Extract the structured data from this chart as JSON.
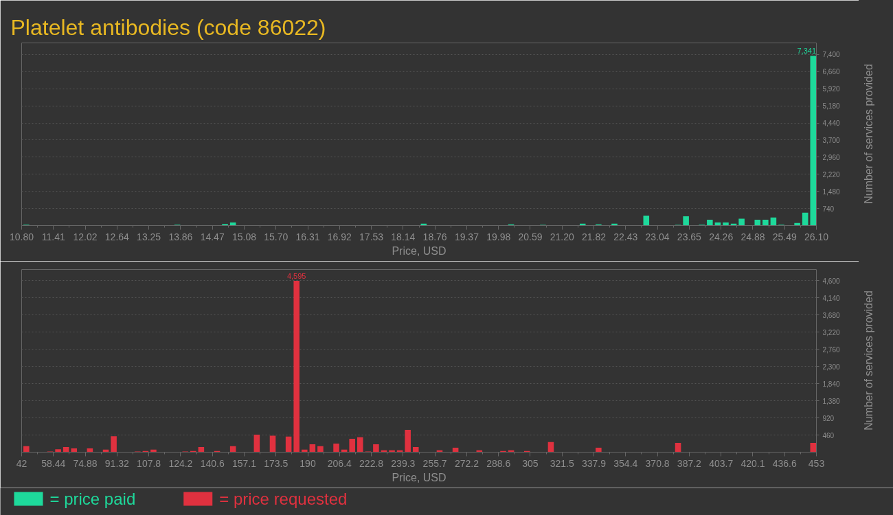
{
  "chart_data": [
    {
      "type": "histogram",
      "title": "Platelet antibodies (code 86022)",
      "xlabel": "Price, USD",
      "ylabel": "Number of services provided",
      "grid": "y",
      "legend": "bottom left",
      "bins": [
        10.8,
        10.953,
        11.106,
        11.259,
        11.412,
        11.565,
        11.718,
        11.871,
        12.024,
        12.177,
        12.33,
        12.483,
        12.636,
        12.789,
        12.942,
        13.095,
        13.248,
        13.401,
        13.554,
        13.707,
        13.86,
        14.013,
        14.166,
        14.319,
        14.472,
        14.625,
        14.778,
        14.931,
        15.084,
        15.237,
        15.39,
        15.543,
        15.696,
        15.849,
        16.002,
        16.155,
        16.308,
        16.461,
        16.614,
        16.767,
        16.92,
        17.073,
        17.226,
        17.379,
        17.532,
        17.685,
        17.838,
        17.991,
        18.144,
        18.297,
        18.45,
        18.603,
        18.756,
        18.909,
        19.062,
        19.215,
        19.368,
        19.521,
        19.674,
        19.827,
        19.98,
        20.133,
        20.286,
        20.439,
        20.592,
        20.745,
        20.898,
        21.051,
        21.204,
        21.357,
        21.51,
        21.663,
        21.816,
        21.969,
        22.122,
        22.275,
        22.428,
        22.581,
        22.734,
        22.887,
        23.04,
        23.193,
        23.346,
        23.499,
        23.652,
        23.805,
        23.958,
        24.111,
        24.264,
        24.417,
        24.57,
        24.723,
        24.876,
        25.029,
        25.182,
        25.335,
        25.488,
        25.641,
        25.794,
        25.947,
        26.1
      ],
      "series": [
        {
          "name": "= price paid",
          "color": "#1ed99b",
          "values": [
            40,
            0,
            0,
            0,
            0,
            0,
            0,
            0,
            0,
            0,
            0,
            0,
            0,
            0,
            0,
            0,
            0,
            0,
            0,
            40,
            0,
            0,
            0,
            0,
            0,
            70,
            130,
            0,
            0,
            0,
            0,
            0,
            0,
            0,
            0,
            0,
            0,
            0,
            0,
            0,
            0,
            0,
            0,
            0,
            0,
            0,
            0,
            0,
            0,
            0,
            80,
            0,
            0,
            0,
            0,
            0,
            0,
            0,
            0,
            0,
            0,
            50,
            0,
            0,
            0,
            30,
            0,
            0,
            0,
            0,
            80,
            0,
            50,
            0,
            80,
            0,
            0,
            0,
            430,
            0,
            0,
            0,
            30,
            400,
            0,
            40,
            250,
            130,
            130,
            80,
            300,
            0,
            250,
            250,
            350,
            40,
            0,
            110,
            560,
            7341
          ],
          "value_labels": [
            null,
            null,
            null,
            null,
            null,
            null,
            null,
            null,
            null,
            null,
            null,
            null,
            null,
            null,
            null,
            null,
            null,
            null,
            null,
            null,
            null,
            null,
            null,
            null,
            null,
            null,
            null,
            null,
            null,
            null,
            null,
            null,
            null,
            null,
            null,
            null,
            null,
            null,
            null,
            null,
            null,
            null,
            null,
            null,
            null,
            null,
            null,
            null,
            null,
            null,
            null,
            null,
            null,
            null,
            null,
            null,
            null,
            null,
            null,
            null,
            null,
            null,
            null,
            null,
            null,
            null,
            null,
            null,
            null,
            null,
            null,
            null,
            null,
            null,
            null,
            null,
            null,
            null,
            null,
            null,
            null,
            null,
            null,
            null,
            null,
            null,
            null,
            null,
            null,
            null,
            null,
            null,
            null,
            null,
            null,
            null,
            null,
            null,
            null,
            "7,341"
          ]
        }
      ],
      "xlim": [
        10.8,
        26.1
      ],
      "xticks": [
        {
          "value": 10.8,
          "label": "10.80"
        },
        {
          "value": 11.412,
          "label": "11.41"
        },
        {
          "value": 12.024,
          "label": "12.02"
        },
        {
          "value": 12.636,
          "label": "12.64"
        },
        {
          "value": 13.248,
          "label": "13.25"
        },
        13.86,
        {
          "value": 14.472,
          "label": "14.47"
        },
        {
          "value": 15.084,
          "label": "15.08"
        },
        {
          "value": 15.696,
          "label": "15.70"
        },
        {
          "value": 16.308,
          "label": "16.31"
        },
        16.92,
        {
          "value": 17.532,
          "label": "17.53"
        },
        {
          "value": 18.144,
          "label": "18.14"
        },
        {
          "value": 18.756,
          "label": "18.76"
        },
        {
          "value": 19.368,
          "label": "19.37"
        },
        19.98,
        {
          "value": 20.592,
          "label": "20.59"
        },
        {
          "value": 21.204,
          "label": "21.20"
        },
        {
          "value": 21.816,
          "label": "21.82"
        },
        {
          "value": 22.428,
          "label": "22.43"
        },
        23.04,
        {
          "value": 23.652,
          "label": "23.65"
        },
        {
          "value": 24.264,
          "label": "24.26"
        },
        {
          "value": 24.876,
          "label": "24.88"
        },
        {
          "value": 25.488,
          "label": "25.49"
        },
        {
          "value": 26.1,
          "label": "26.10"
        }
      ],
      "ylim": [
        0,
        7900
      ],
      "yticks": [
        740,
        {
          "value": 1480,
          "label": "1,480"
        },
        {
          "value": 2220,
          "label": "2,220"
        },
        {
          "value": 2960,
          "label": "2,960"
        },
        {
          "value": 3700,
          "label": "3,700"
        },
        {
          "value": 4440,
          "label": "4,440"
        },
        {
          "value": 5180,
          "label": "5,180"
        },
        {
          "value": 5920,
          "label": "5,920"
        },
        {
          "value": 6660,
          "label": "6,660"
        },
        {
          "value": 7400,
          "label": "7,400"
        }
      ]
    },
    {
      "type": "histogram",
      "xlabel": "Price, USD",
      "ylabel": "Number of services provided",
      "grid": "y",
      "legend": "bottom left",
      "bins": [
        42,
        46.11,
        50.22,
        54.33,
        58.44,
        62.55,
        66.66,
        70.77,
        74.88,
        78.99,
        83.1,
        87.21,
        91.32,
        95.43,
        99.54,
        103.65,
        107.76,
        111.87,
        115.98,
        120.09,
        124.2,
        128.31,
        132.42,
        136.53,
        140.64,
        144.75,
        148.86,
        152.97,
        157.08,
        161.19,
        165.3,
        169.41,
        173.52,
        177.63,
        181.74,
        185.85,
        189.96,
        194.07,
        198.18,
        202.29,
        206.4,
        210.51,
        214.62,
        218.73,
        222.84,
        226.95,
        231.06,
        235.17,
        239.28,
        243.39,
        247.5,
        251.61,
        255.72,
        259.83,
        263.94,
        268.05,
        272.16,
        276.27,
        280.38,
        284.49,
        288.6,
        292.71,
        296.82,
        300.93,
        305.04,
        309.15,
        313.26,
        317.37,
        321.48,
        325.59,
        329.7,
        333.81,
        337.92,
        342.03,
        346.14,
        350.25,
        354.36,
        358.47,
        362.58,
        366.69,
        370.8,
        374.91,
        379.02,
        383.13,
        387.24,
        391.35,
        395.46,
        399.57,
        403.68,
        407.79,
        411.9,
        416.01,
        420.12,
        424.23,
        428.34,
        432.45,
        436.56,
        440.67,
        444.78,
        448.89,
        453
      ],
      "series": [
        {
          "name": "= price requested",
          "color": "#e0313f",
          "values": [
            160,
            0,
            0,
            20,
            80,
            140,
            100,
            0,
            100,
            0,
            70,
            430,
            0,
            0,
            20,
            30,
            70,
            0,
            0,
            0,
            20,
            30,
            140,
            0,
            30,
            0,
            160,
            0,
            0,
            470,
            0,
            440,
            0,
            420,
            4595,
            70,
            210,
            160,
            0,
            230,
            70,
            360,
            400,
            20,
            210,
            50,
            50,
            50,
            600,
            140,
            0,
            0,
            50,
            0,
            120,
            0,
            0,
            50,
            0,
            0,
            30,
            50,
            0,
            30,
            0,
            0,
            270,
            0,
            0,
            0,
            0,
            0,
            120,
            0,
            0,
            0,
            0,
            0,
            0,
            0,
            0,
            0,
            250,
            0,
            0,
            0,
            0,
            0,
            0,
            0,
            0,
            0,
            0,
            0,
            0,
            0,
            0,
            0,
            0,
            250
          ],
          "value_labels": [
            null,
            null,
            null,
            null,
            null,
            null,
            null,
            null,
            null,
            null,
            null,
            null,
            null,
            null,
            null,
            null,
            null,
            null,
            null,
            null,
            null,
            null,
            null,
            null,
            null,
            null,
            null,
            null,
            null,
            null,
            null,
            null,
            null,
            null,
            "4,595",
            null,
            null,
            null,
            null,
            null,
            null,
            null,
            null,
            null,
            null,
            null,
            null,
            null,
            null,
            null,
            null,
            null,
            null,
            null,
            null,
            null,
            null,
            null,
            null,
            null,
            null,
            null,
            null,
            null,
            null,
            null,
            null,
            null,
            null,
            null,
            null,
            null,
            null,
            null,
            null,
            null,
            null,
            null,
            null,
            null,
            null,
            null,
            null,
            null,
            null,
            null,
            null,
            null,
            null,
            null,
            null,
            null,
            null,
            null,
            null,
            null,
            null,
            null,
            null,
            null
          ]
        }
      ],
      "xlim": [
        42,
        453
      ],
      "xticks": [
        42,
        58.44,
        74.88,
        91.32,
        {
          "value": 107.76,
          "label": "107.8"
        },
        124.2,
        {
          "value": 140.64,
          "label": "140.6"
        },
        {
          "value": 157.08,
          "label": "157.1"
        },
        {
          "value": 173.52,
          "label": "173.5"
        },
        {
          "value": 189.96,
          "label": "190"
        },
        206.4,
        {
          "value": 222.84,
          "label": "222.8"
        },
        {
          "value": 239.28,
          "label": "239.3"
        },
        {
          "value": 255.72,
          "label": "255.7"
        },
        {
          "value": 272.16,
          "label": "272.2"
        },
        288.6,
        {
          "value": 305.04,
          "label": "305"
        },
        {
          "value": 321.48,
          "label": "321.5"
        },
        {
          "value": 337.92,
          "label": "337.9"
        },
        {
          "value": 354.36,
          "label": "354.4"
        },
        370.8,
        {
          "value": 387.24,
          "label": "387.2"
        },
        {
          "value": 403.68,
          "label": "403.7"
        },
        {
          "value": 420.12,
          "label": "420.1"
        },
        {
          "value": 436.56,
          "label": "436.6"
        },
        453
      ],
      "ylim": [
        0,
        4900
      ],
      "yticks": [
        460,
        920,
        {
          "value": 1380,
          "label": "1,380"
        },
        {
          "value": 1840,
          "label": "1,840"
        },
        {
          "value": 2300,
          "label": "2,300"
        },
        {
          "value": 2760,
          "label": "2,760"
        },
        {
          "value": 3220,
          "label": "3,220"
        },
        {
          "value": 3680,
          "label": "3,680"
        },
        {
          "value": 4140,
          "label": "4,140"
        },
        {
          "value": 4600,
          "label": "4,600"
        }
      ]
    }
  ]
}
